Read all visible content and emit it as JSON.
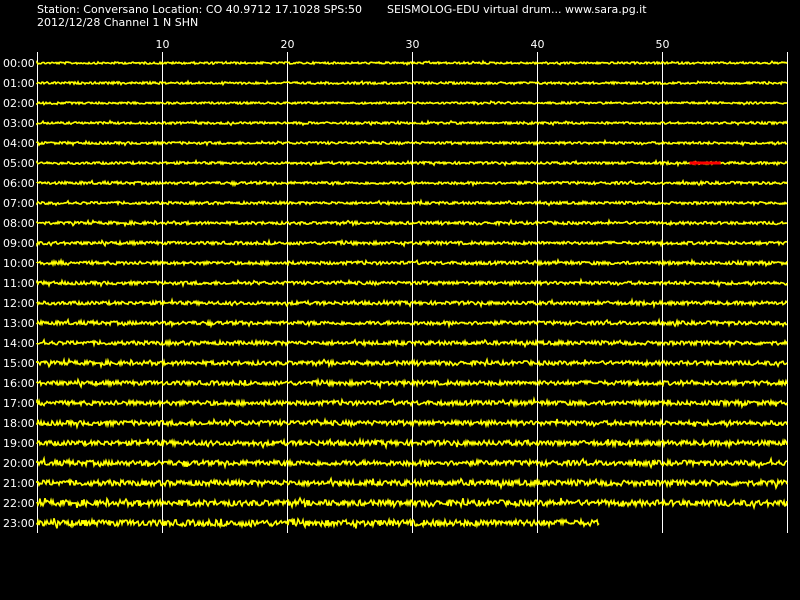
{
  "header": {
    "station_line": "Station: Conversano Location: CO 40.9712 17.1028 SPS:50",
    "app_line": "SEISMOLOG-EDU virtual drum... www.sara.pg.it",
    "date_line": "2012/12/28  Channel 1 N SHN"
  },
  "colors": {
    "background": "#000000",
    "trace": "#ffff00",
    "event": "#ff0000",
    "grid": "#ffffff",
    "text": "#ffffff"
  },
  "chart_data": {
    "type": "line",
    "title": "",
    "xlabel": "",
    "ylabel": "",
    "x_unit": "minutes",
    "xlim": [
      0,
      60
    ],
    "x_ticks": [
      10,
      20,
      30,
      40,
      50
    ],
    "grid": true,
    "rows": [
      "00:00",
      "01:00",
      "02:00",
      "03:00",
      "04:00",
      "05:00",
      "06:00",
      "07:00",
      "08:00",
      "09:00",
      "10:00",
      "11:00",
      "12:00",
      "13:00",
      "14:00",
      "15:00",
      "16:00",
      "17:00",
      "18:00",
      "19:00",
      "20:00",
      "21:00",
      "22:00",
      "23:00"
    ],
    "row_end_minute": [
      60,
      60,
      60,
      60,
      60,
      60,
      60,
      60,
      60,
      60,
      60,
      60,
      60,
      60,
      60,
      60,
      60,
      60,
      60,
      60,
      60,
      60,
      60,
      45
    ],
    "noise_amplitude": [
      1.0,
      1.1,
      1.0,
      1.1,
      1.2,
      1.2,
      1.3,
      1.3,
      1.4,
      1.5,
      1.6,
      1.6,
      1.7,
      1.8,
      1.9,
      2.0,
      2.1,
      2.2,
      2.3,
      2.4,
      2.5,
      2.7,
      2.9,
      3.1
    ],
    "events": [
      {
        "row": "05:00",
        "start_minute": 52.2,
        "end_minute": 54.7
      }
    ]
  }
}
